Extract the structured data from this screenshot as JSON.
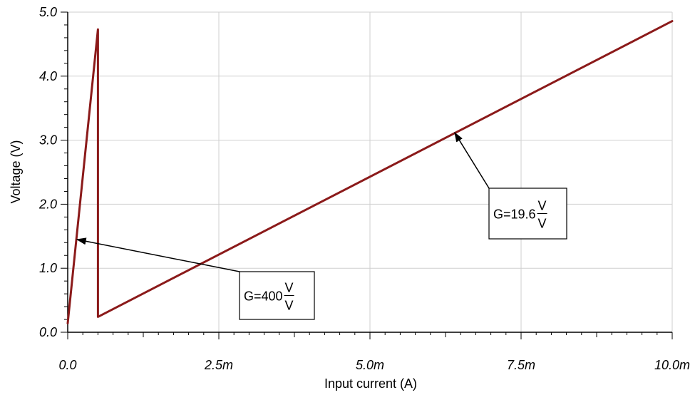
{
  "chart_data": {
    "type": "line",
    "xlabel": "Input current (A)",
    "ylabel": "Voltage (V)",
    "xlim": [
      0,
      0.01
    ],
    "ylim": [
      0,
      5
    ],
    "grid": true,
    "x_tick_values": [
      0,
      0.0025,
      0.005,
      0.0075,
      0.01
    ],
    "x_tick_labels": [
      "0.0",
      "2.5m",
      "5.0m",
      "7.5m",
      "10.0m"
    ],
    "y_tick_values": [
      0,
      1,
      2,
      3,
      4,
      5
    ],
    "y_tick_labels": [
      "0.0",
      "1.0",
      "2.0",
      "3.0",
      "4.0",
      "5.0"
    ],
    "series": [
      {
        "color": "#8b1a1a",
        "x": [
          0,
          0.0005,
          0.0005,
          0.01
        ],
        "y": [
          0.14,
          4.73,
          0.24,
          4.86
        ]
      }
    ],
    "annotations": [
      {
        "prefix": "G=400",
        "unit_top": "V",
        "unit_bottom": "V",
        "arrow_to": [
          0.00015,
          1.45
        ]
      },
      {
        "prefix": "G=19.6",
        "unit_top": "V",
        "unit_bottom": "V",
        "arrow_to": [
          0.0064,
          3.12
        ]
      }
    ]
  }
}
